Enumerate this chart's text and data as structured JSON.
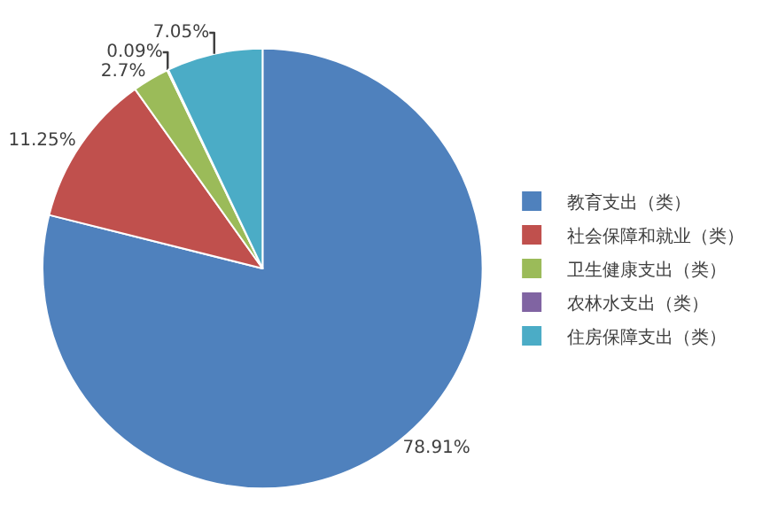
{
  "chart_data": {
    "type": "pie",
    "categories": [
      "教育支出（类）",
      "社会保障和就业（类）",
      "卫生健康支出（类）",
      "农林水支出（类）",
      "住房保障支出（类）"
    ],
    "values": [
      78.91,
      11.25,
      2.7,
      0.09,
      7.05
    ],
    "colors": [
      "#4f81bd",
      "#c0504d",
      "#9bbb59",
      "#8064a2",
      "#4bacc6"
    ],
    "value_labels": [
      "78.91%",
      "11.25%",
      "2.7%",
      "0.09%",
      "7.05%"
    ],
    "legend": "right"
  }
}
